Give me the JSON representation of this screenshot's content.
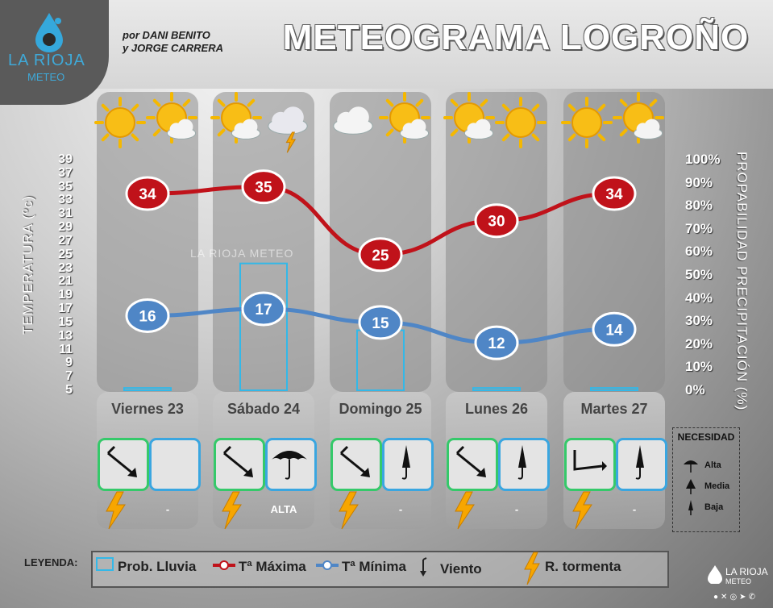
{
  "header": {
    "title": "METEOGRAMA LOGROÑO",
    "authors_line1": "por DANI BENITO",
    "authors_line2": "y JORGE CARRERA",
    "logo_name": "LA RIOJA",
    "logo_sub": "METEO",
    "watermark": "LA RIOJA METEO"
  },
  "axes": {
    "left_label": "TEMPERATURA (ºc)",
    "right_label": "PROPABILIDAD PRECIPITACIÓN (%)",
    "left_ticks": [
      "39",
      "37",
      "35",
      "33",
      "31",
      "29",
      "27",
      "25",
      "23",
      "21",
      "19",
      "17",
      "15",
      "13",
      "11",
      "9",
      "7",
      "5"
    ],
    "right_ticks": [
      "100%",
      "90%",
      "80%",
      "70%",
      "60%",
      "50%",
      "40%",
      "30%",
      "20%",
      "10%",
      "0%"
    ]
  },
  "chart_data": {
    "type": "line",
    "title": "METEOGRAMA LOGROÑO",
    "categories": [
      "Viernes 23",
      "Sábado 24",
      "Domingo 25",
      "Lunes 26",
      "Martes 27"
    ],
    "ylabel": "TEMPERATURA (ºc)",
    "y2label": "PROPABILIDAD PRECIPITACIÓN (%)",
    "ylim": [
      5,
      39
    ],
    "y2lim": [
      0,
      100
    ],
    "series": [
      {
        "name": "Tª Máxima",
        "values": [
          34,
          35,
          25,
          30,
          34
        ],
        "color": "#c0121a"
      },
      {
        "name": "Tª Mínima",
        "values": [
          16,
          17,
          15,
          12,
          14
        ],
        "color": "#4f86c6"
      },
      {
        "name": "Prob. Lluvia",
        "type": "bar",
        "axis": "right",
        "values": [
          1,
          55,
          26,
          1,
          1
        ],
        "color": "#33b8e8"
      }
    ],
    "icons": [
      [
        "sun-icon",
        "sun-cloud-icon"
      ],
      [
        "sun-cloud-icon",
        "storm-cloud-icon"
      ],
      [
        "cloud-icon",
        "sun-cloud-icon"
      ],
      [
        "sun-cloud-icon",
        "sun-icon"
      ],
      [
        "sun-icon",
        "sun-cloud-icon"
      ]
    ],
    "grid": false,
    "legend": "bottom"
  },
  "days": [
    {
      "label": "Viernes 23",
      "wind_dir": "north-west",
      "umbrella": "none",
      "storm": true,
      "need": "-"
    },
    {
      "label": "Sábado 24",
      "wind_dir": "north-west",
      "umbrella": "alta",
      "storm": true,
      "need": "ALTA"
    },
    {
      "label": "Domingo 25",
      "wind_dir": "north-west",
      "umbrella": "baja",
      "storm": true,
      "need": "-"
    },
    {
      "label": "Lunes 26",
      "wind_dir": "north-west",
      "umbrella": "baja",
      "storm": true,
      "need": "-"
    },
    {
      "label": "Martes 27",
      "wind_dir": "west",
      "umbrella": "baja",
      "storm": true,
      "need": "-"
    }
  ],
  "necesidad": {
    "title": "NECESIDAD",
    "items": [
      "Alta",
      "Media",
      "Baja"
    ]
  },
  "legend": {
    "title": "LEYENDA:",
    "rain": "Prob. Lluvia",
    "max": "Tª Máxima",
    "min": "Tª Mínima",
    "wind": "Viento",
    "storm": "R. tormenta"
  },
  "colors": {
    "max": "#c0121a",
    "min": "#4f86c6",
    "rain": "#33b8e8",
    "sun": "#f5b800",
    "bolt": "#f7a600"
  }
}
